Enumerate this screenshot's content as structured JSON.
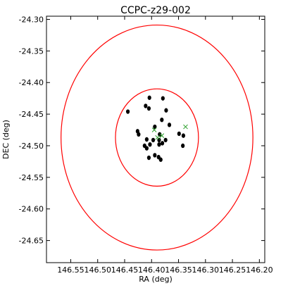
{
  "chart_data": {
    "type": "scatter",
    "title": "CCPC-z29-002",
    "xlabel": "RA (deg)",
    "ylabel": "DEC (deg)",
    "xlim": [
      146.595,
      146.19
    ],
    "ylim": [
      -24.685,
      -24.295
    ],
    "x_inverted": true,
    "x_ticks": [
      "146.55",
      "146.50",
      "146.45",
      "146.40",
      "146.35",
      "146.30",
      "146.25",
      "146.20"
    ],
    "y_ticks": [
      "-24.30",
      "-24.35",
      "-24.40",
      "-24.45",
      "-24.50",
      "-24.55",
      "-24.60",
      "-24.65"
    ],
    "grid": false,
    "circles": [
      {
        "center": [
          146.39,
          -24.487
        ],
        "radius": 0.178,
        "color": "#ff0000"
      },
      {
        "center": [
          146.39,
          -24.487
        ],
        "radius": 0.077,
        "color": "#ff0000"
      }
    ],
    "series": [
      {
        "marker": "filled-circle",
        "color": "#000000",
        "points": [
          [
            146.444,
            -24.446
          ],
          [
            146.411,
            -24.437
          ],
          [
            146.404,
            -24.424
          ],
          [
            146.405,
            -24.441
          ],
          [
            146.379,
            -24.425
          ],
          [
            146.373,
            -24.444
          ],
          [
            146.381,
            -24.459
          ],
          [
            146.367,
            -24.467
          ],
          [
            146.426,
            -24.477
          ],
          [
            146.424,
            -24.482
          ],
          [
            146.394,
            -24.47
          ],
          [
            146.385,
            -24.482
          ],
          [
            146.386,
            -24.491
          ],
          [
            146.397,
            -24.491
          ],
          [
            146.409,
            -24.49
          ],
          [
            146.38,
            -24.496
          ],
          [
            146.374,
            -24.491
          ],
          [
            146.386,
            -24.498
          ],
          [
            146.403,
            -24.498
          ],
          [
            146.409,
            -24.504
          ],
          [
            146.413,
            -24.5
          ],
          [
            146.394,
            -24.515
          ],
          [
            146.387,
            -24.518
          ],
          [
            146.383,
            -24.522
          ],
          [
            146.405,
            -24.519
          ],
          [
            146.349,
            -24.481
          ],
          [
            146.341,
            -24.484
          ],
          [
            146.342,
            -24.5
          ]
        ]
      },
      {
        "marker": "x",
        "color": "#2ca02c",
        "points": [
          [
            146.395,
            -24.475
          ],
          [
            146.389,
            -24.487
          ],
          [
            146.381,
            -24.484
          ],
          [
            146.337,
            -24.47
          ]
        ]
      }
    ]
  }
}
